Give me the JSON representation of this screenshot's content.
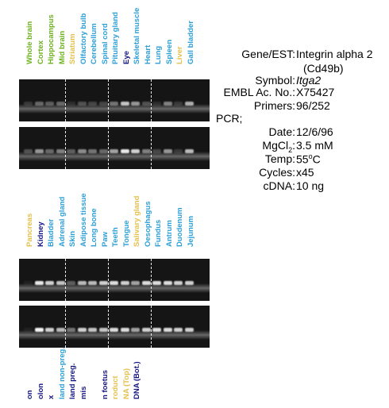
{
  "colors": {
    "green": "#6db21f",
    "yellow": "#e5c14a",
    "blue": "#2b9fd8",
    "navy": "#161683"
  },
  "panel1_labels": [
    {
      "text": "Whole brain",
      "color": "green"
    },
    {
      "text": "Cortex",
      "color": "green"
    },
    {
      "text": "Hippocampus",
      "color": "green"
    },
    {
      "text": "Mid brain",
      "color": "green"
    },
    {
      "text": "Striatum",
      "color": "yellow"
    },
    {
      "text": "Olfactory bulb",
      "color": "blue"
    },
    {
      "text": "Cerebellum",
      "color": "blue"
    },
    {
      "text": "Spinal cord",
      "color": "blue"
    },
    {
      "text": "Pituitary gland",
      "color": "blue"
    },
    {
      "text": "Eye",
      "color": "navy"
    },
    {
      "text": "Skeletal muscle",
      "color": "blue"
    },
    {
      "text": "Heart",
      "color": "blue"
    },
    {
      "text": "Lung",
      "color": "blue"
    },
    {
      "text": "Spleen",
      "color": "blue"
    },
    {
      "text": "Liver",
      "color": "yellow"
    },
    {
      "text": "Gall bladder",
      "color": "blue"
    }
  ],
  "panel2_labels": [
    {
      "text": "Pancreas",
      "color": "yellow"
    },
    {
      "text": "Kidney",
      "color": "navy"
    },
    {
      "text": "Bladder",
      "color": "blue"
    },
    {
      "text": "Adrenal gland",
      "color": "blue"
    },
    {
      "text": "Skin",
      "color": "blue"
    },
    {
      "text": "Adipose tissue",
      "color": "blue"
    },
    {
      "text": "Long bone",
      "color": "blue"
    },
    {
      "text": "Paw",
      "color": "blue"
    },
    {
      "text": "Teeth",
      "color": "blue"
    },
    {
      "text": "Tongue",
      "color": "blue"
    },
    {
      "text": "Salivary gland",
      "color": "yellow"
    },
    {
      "text": "Oesophagus",
      "color": "blue"
    },
    {
      "text": "Fundus",
      "color": "blue"
    },
    {
      "text": "Antrum",
      "color": "blue"
    },
    {
      "text": "Duodenum",
      "color": "blue"
    },
    {
      "text": "Jejunum",
      "color": "blue"
    }
  ],
  "panel3_labels": [
    {
      "text": "on",
      "color": "navy"
    },
    {
      "text": "olon",
      "color": "navy"
    },
    {
      "text": "x",
      "color": "navy"
    },
    {
      "text": "land non-preg.",
      "color": "blue"
    },
    {
      "text": "land preg.",
      "color": "navy"
    },
    {
      "text": "mis",
      "color": "navy"
    },
    {
      "text": "",
      "color": "navy"
    },
    {
      "text": "n foetus",
      "color": "navy"
    },
    {
      "text": "roduct",
      "color": "yellow"
    },
    {
      "text": "NA (Top)",
      "color": "yellow"
    },
    {
      "text": "DNA (Bot.)",
      "color": "navy"
    }
  ],
  "gel_bands": {
    "panel1_top": [
      0.15,
      0.35,
      0.3,
      0.35,
      0.1,
      0.25,
      0.2,
      0.2,
      0.4,
      0.75,
      0.55,
      0.25,
      0.1,
      0.45,
      0.15,
      0.65
    ],
    "panel1_bottom": [
      0.25,
      0.55,
      0.35,
      0.45,
      0.3,
      0.5,
      0.4,
      0.35,
      0.6,
      0.9,
      0.8,
      0.45,
      0.2,
      0.55,
      0.15,
      0.7
    ],
    "panel2_top": [
      0.05,
      0.9,
      0.8,
      0.75,
      0.3,
      0.7,
      0.7,
      0.8,
      0.85,
      0.8,
      0.6,
      0.85,
      0.85,
      0.85,
      0.8,
      0.8
    ],
    "panel2_bottom": [
      0.05,
      0.95,
      0.8,
      0.7,
      0.4,
      0.8,
      0.75,
      0.75,
      0.85,
      0.85,
      0.6,
      0.8,
      0.85,
      0.85,
      0.8,
      0.8
    ]
  },
  "info": {
    "gene_key": "Gene/EST:",
    "gene_val": "Integrin alpha 2",
    "gene_val2": "(Cd49b)",
    "symbol_key": "Symbol:",
    "symbol_val": "Itga2",
    "embl_key": "EMBL Ac. No.:",
    "embl_val": "X75427",
    "primers_key": "Primers:",
    "primers_val": "96/252",
    "pcr_heading": "PCR;",
    "date_key": "Date:",
    "date_val": "12/6/96",
    "mgcl_key_main": "MgCl",
    "mgcl_key_sub": "2",
    "mgcl_key_colon": ":",
    "mgcl_val": "3.5 mM",
    "temp_key": "Temp:",
    "temp_val_num": "55",
    "temp_val_sup": "o",
    "temp_val_unit": "C",
    "cycles_key": "Cycles:",
    "cycles_val": "x45",
    "cdna_key": "cDNA:",
    "cdna_val": "10 ng"
  }
}
